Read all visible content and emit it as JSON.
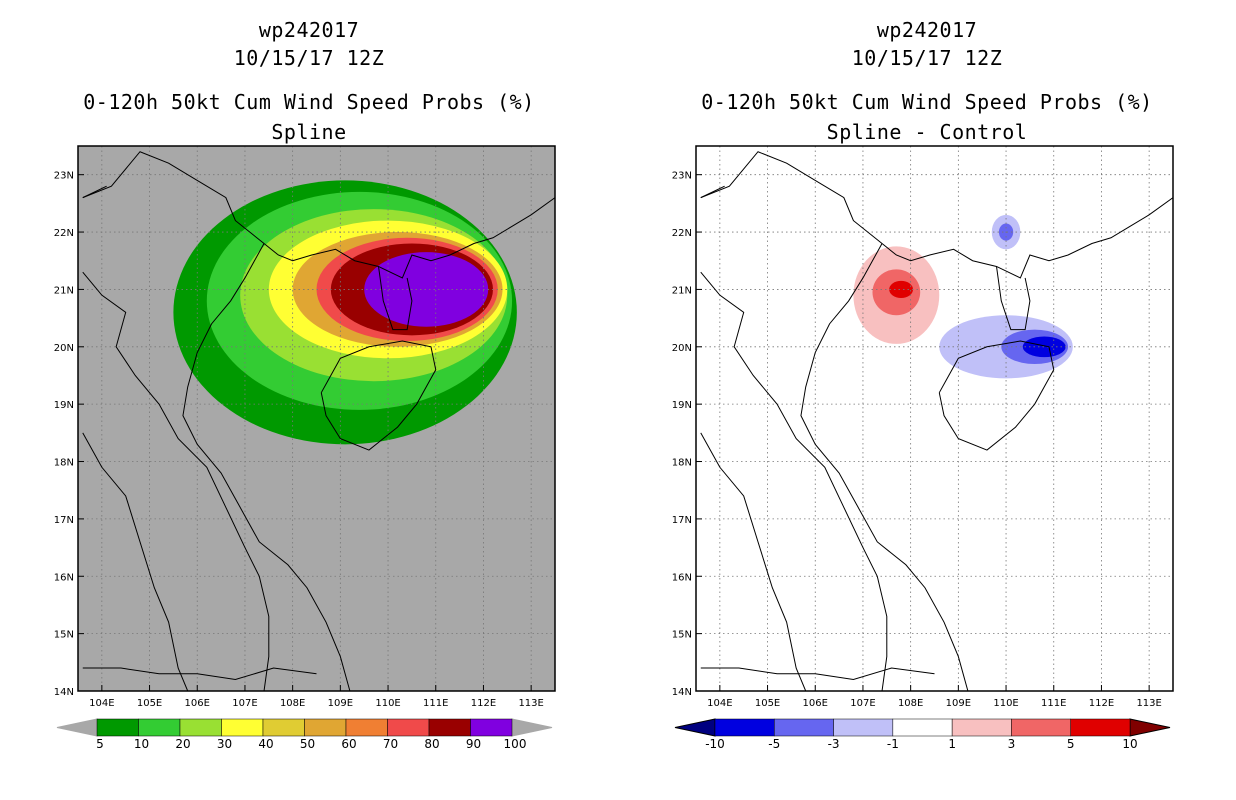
{
  "chart_data": [
    {
      "type": "heatmap",
      "title": "wp242017",
      "date": "10/15/17 12Z",
      "subtitle": "0-120h 50kt Cum Wind Speed Probs (%)",
      "panel_label": "Spline",
      "xlim": [
        103.5,
        113.5
      ],
      "ylim": [
        14,
        23.5
      ],
      "x_ticks": [
        "104E",
        "105E",
        "106E",
        "107E",
        "108E",
        "109E",
        "110E",
        "111E",
        "112E",
        "113E"
      ],
      "y_ticks": [
        "14N",
        "15N",
        "16N",
        "17N",
        "18N",
        "19N",
        "20N",
        "21N",
        "22N",
        "23N"
      ],
      "colorbar": {
        "labels": [
          "5",
          "10",
          "20",
          "30",
          "40",
          "50",
          "60",
          "70",
          "80",
          "90",
          "100"
        ],
        "colors": [
          "#009900",
          "#33cc33",
          "#99e033",
          "#ffff33",
          "#e0cc33",
          "#e0a633",
          "#f07f33",
          "#f04a4a",
          "#990000",
          "#8000e0"
        ]
      },
      "background": "#a8a8a8",
      "contour_levels": [
        {
          "level": 5,
          "color": "#009900",
          "center": [
            109.1,
            20.6
          ],
          "rx": 3.6,
          "ry": 2.3
        },
        {
          "level": 10,
          "color": "#33cc33",
          "center": [
            109.4,
            20.8
          ],
          "rx": 3.2,
          "ry": 1.9
        },
        {
          "level": 20,
          "color": "#99e033",
          "center": [
            109.7,
            20.9
          ],
          "rx": 2.8,
          "ry": 1.5
        },
        {
          "level": 30,
          "color": "#ffff33",
          "center": [
            110.0,
            21.0
          ],
          "rx": 2.5,
          "ry": 1.2
        },
        {
          "level": 50,
          "color": "#e0a633",
          "center": [
            110.2,
            21.0
          ],
          "rx": 2.2,
          "ry": 1.0
        },
        {
          "level": 70,
          "color": "#f04a4a",
          "center": [
            110.4,
            21.0
          ],
          "rx": 1.9,
          "ry": 0.9
        },
        {
          "level": 90,
          "color": "#990000",
          "center": [
            110.5,
            21.0
          ],
          "rx": 1.7,
          "ry": 0.8
        },
        {
          "level": 100,
          "color": "#8000e0",
          "center": [
            110.8,
            21.0
          ],
          "rx": 1.3,
          "ry": 0.65
        }
      ]
    },
    {
      "type": "heatmap",
      "title": "wp242017",
      "date": "10/15/17 12Z",
      "subtitle": "0-120h 50kt Cum Wind Speed Probs (%)",
      "panel_label": "Spline - Control",
      "xlim": [
        103.5,
        113.5
      ],
      "ylim": [
        14,
        23.5
      ],
      "x_ticks": [
        "104E",
        "105E",
        "106E",
        "107E",
        "108E",
        "109E",
        "110E",
        "111E",
        "112E",
        "113E"
      ],
      "y_ticks": [
        "14N",
        "15N",
        "16N",
        "17N",
        "18N",
        "19N",
        "20N",
        "21N",
        "22N",
        "23N"
      ],
      "colorbar": {
        "labels": [
          "-10",
          "-5",
          "-3",
          "-1",
          "1",
          "3",
          "5",
          "10"
        ],
        "colors": [
          "#000080",
          "#0000e0",
          "#6666f0",
          "#c0c0f8",
          "#ffffff",
          "#f8c0c0",
          "#f06666",
          "#e00000",
          "#800000"
        ]
      },
      "background": "#ffffff",
      "anomalies": [
        {
          "value": 1,
          "color": "#f8c0c0",
          "center": [
            107.7,
            20.9
          ],
          "rx": 0.9,
          "ry": 0.85
        },
        {
          "value": 3,
          "color": "#f06666",
          "center": [
            107.7,
            20.95
          ],
          "rx": 0.5,
          "ry": 0.4
        },
        {
          "value": 5,
          "color": "#e00000",
          "center": [
            107.8,
            21.0
          ],
          "rx": 0.25,
          "ry": 0.15
        },
        {
          "value": -1,
          "color": "#c0c0f8",
          "center": [
            110.0,
            20.0
          ],
          "rx": 1.4,
          "ry": 0.55
        },
        {
          "value": -3,
          "color": "#6666f0",
          "center": [
            110.6,
            20.0
          ],
          "rx": 0.7,
          "ry": 0.3
        },
        {
          "value": -5,
          "color": "#0000e0",
          "center": [
            110.8,
            20.0
          ],
          "rx": 0.45,
          "ry": 0.18
        },
        {
          "value": -1,
          "color": "#c0c0f8",
          "center": [
            110.0,
            22.0
          ],
          "rx": 0.3,
          "ry": 0.3
        },
        {
          "value": -3,
          "color": "#6666f0",
          "center": [
            110.0,
            22.0
          ],
          "rx": 0.15,
          "ry": 0.15
        }
      ]
    }
  ]
}
